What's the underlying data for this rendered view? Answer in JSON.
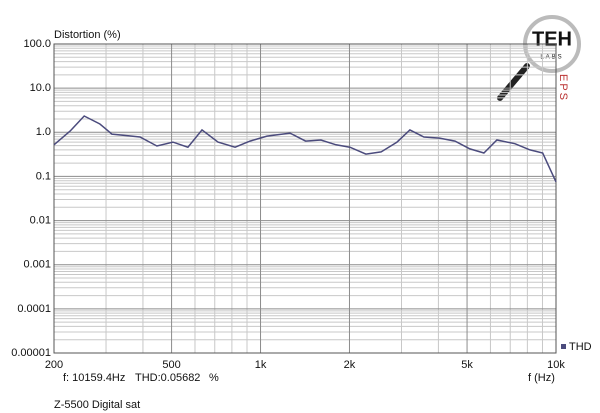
{
  "chart_data": {
    "type": "line",
    "ylabel": "Distortion (%)",
    "xlabel": "f (Hz)",
    "readout": {
      "freq": "f: 10159.4Hz",
      "thd": "THD:0.05682",
      "unit": "%"
    },
    "footer": "Z-5500 Digital sat",
    "logo": {
      "text": "TEH",
      "sub": "LABS",
      "side": "EPS"
    },
    "xlog": true,
    "ylog": true,
    "grid": true,
    "xlim": [
      200,
      10000
    ],
    "ylim": [
      1e-05,
      100
    ],
    "xticks": [
      200,
      500,
      {
        "value": 1000,
        "label": "1k"
      },
      {
        "value": 2000,
        "label": "2k"
      },
      {
        "value": 5000,
        "label": "5k"
      },
      {
        "value": 10000,
        "label": "10k"
      }
    ],
    "xminor": [
      300,
      400,
      600,
      700,
      800,
      900,
      3000,
      4000,
      6000,
      7000,
      8000,
      9000
    ],
    "yticks": [
      {
        "value": 100,
        "label": "100.0"
      },
      {
        "value": 10,
        "label": "10.0"
      },
      {
        "value": 1,
        "label": "1.0"
      },
      0.1,
      0.01,
      0.001,
      0.0001,
      1e-05
    ],
    "yminor": [
      2e-05,
      3e-05,
      4e-05,
      5e-05,
      6e-05,
      7e-05,
      8e-05,
      9e-05,
      0.0002,
      0.0003,
      0.0004,
      0.0005,
      0.0006,
      0.0007,
      0.0008,
      0.0009,
      0.002,
      0.003,
      0.004,
      0.005,
      0.006,
      0.007,
      0.008,
      0.009,
      0.02,
      0.03,
      0.04,
      0.05,
      0.06,
      0.07,
      0.08,
      0.09,
      0.2,
      0.3,
      0.4,
      0.5,
      0.6,
      0.7,
      0.8,
      0.9,
      2,
      3,
      4,
      5,
      6,
      7,
      8,
      9,
      20,
      30,
      40,
      50,
      60,
      70,
      80,
      90
    ],
    "x": [
      200,
      227,
      253,
      286,
      314,
      391,
      446,
      505,
      568,
      634,
      718,
      820,
      921,
      1052,
      1258,
      1421,
      1601,
      1801,
      2007,
      2274,
      2558,
      2896,
      3203,
      3573,
      4034,
      4552,
      5114,
      5703,
      6310,
      7260,
      8166,
      9012,
      10000
    ],
    "series": [
      {
        "name": "THD",
        "color": "#4b4b7d",
        "values": [
          0.52,
          1.07,
          2.34,
          1.54,
          0.91,
          0.78,
          0.49,
          0.6,
          0.46,
          1.13,
          0.6,
          0.46,
          0.63,
          0.82,
          0.96,
          0.63,
          0.67,
          0.52,
          0.46,
          0.32,
          0.36,
          0.6,
          1.13,
          0.78,
          0.74,
          0.63,
          0.42,
          0.34,
          0.67,
          0.55,
          0.4,
          0.34,
          0.075
        ]
      }
    ]
  }
}
